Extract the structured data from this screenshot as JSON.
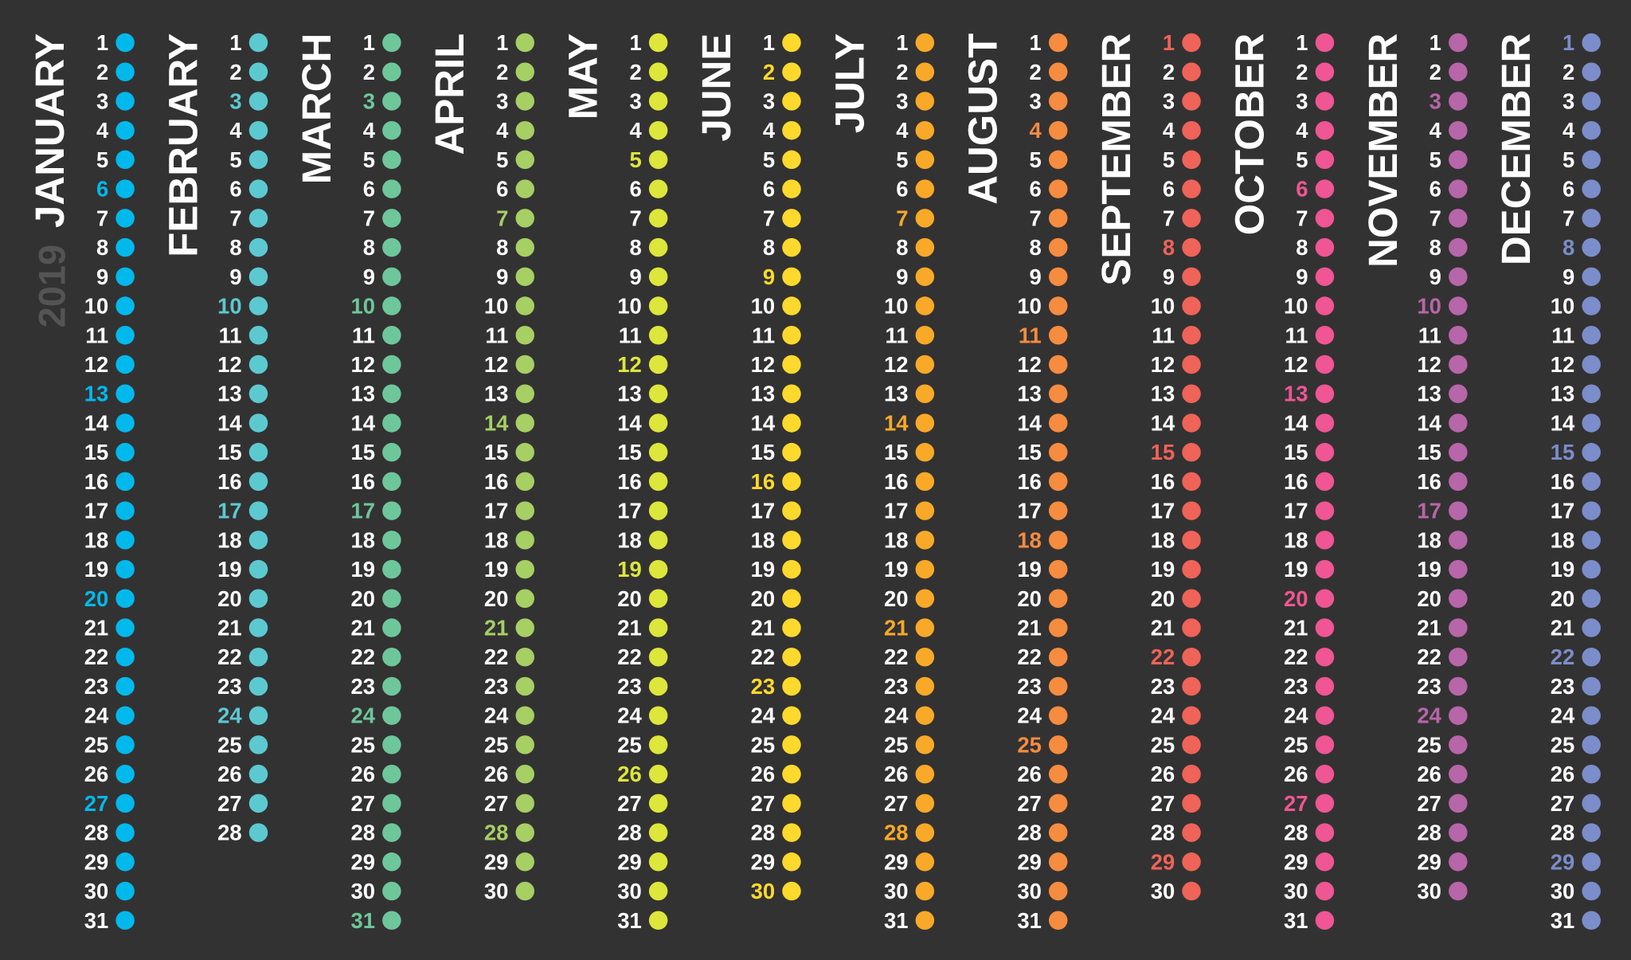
{
  "year": "2019",
  "months": [
    {
      "name": "JANUARY",
      "color": "#00b9ec",
      "days": [
        1,
        2,
        3,
        4,
        5,
        6,
        7,
        8,
        9,
        10,
        11,
        12,
        13,
        14,
        15,
        16,
        17,
        18,
        19,
        20,
        21,
        22,
        23,
        24,
        25,
        26,
        27,
        28,
        29,
        30,
        31
      ],
      "sundays": [
        6,
        13,
        20,
        27
      ]
    },
    {
      "name": "FEBRUARY",
      "color": "#5cc9d1",
      "days": [
        1,
        2,
        3,
        4,
        5,
        6,
        7,
        8,
        9,
        10,
        11,
        12,
        13,
        14,
        15,
        16,
        17,
        18,
        19,
        20,
        21,
        22,
        23,
        24,
        25,
        26,
        27,
        28
      ],
      "sundays": [
        3,
        10,
        17,
        24
      ]
    },
    {
      "name": "MARCH",
      "color": "#6dc79b",
      "days": [
        1,
        2,
        3,
        4,
        5,
        6,
        7,
        8,
        9,
        10,
        11,
        12,
        13,
        14,
        15,
        16,
        17,
        18,
        19,
        20,
        21,
        22,
        23,
        24,
        25,
        26,
        27,
        28,
        29,
        30,
        31
      ],
      "sundays": [
        3,
        10,
        17,
        24,
        31
      ]
    },
    {
      "name": "APRIL",
      "color": "#a6cf64",
      "days": [
        1,
        2,
        3,
        4,
        5,
        6,
        7,
        8,
        9,
        10,
        11,
        12,
        13,
        14,
        15,
        16,
        17,
        18,
        19,
        20,
        21,
        22,
        23,
        24,
        25,
        26,
        27,
        28,
        29,
        30
      ],
      "sundays": [
        7,
        14,
        21,
        28
      ]
    },
    {
      "name": "MAY",
      "color": "#dde63b",
      "days": [
        1,
        2,
        3,
        4,
        5,
        6,
        7,
        8,
        9,
        10,
        11,
        12,
        13,
        14,
        15,
        16,
        17,
        18,
        19,
        20,
        21,
        22,
        23,
        24,
        25,
        26,
        27,
        28,
        29,
        30,
        31
      ],
      "sundays": [
        5,
        12,
        19,
        26
      ]
    },
    {
      "name": "JUNE",
      "color": "#fdd92d",
      "days": [
        1,
        2,
        3,
        4,
        5,
        6,
        7,
        8,
        9,
        10,
        11,
        12,
        13,
        14,
        15,
        16,
        17,
        18,
        19,
        20,
        21,
        22,
        23,
        24,
        25,
        26,
        27,
        28,
        29,
        30
      ],
      "sundays": [
        2,
        9,
        16,
        23,
        30
      ]
    },
    {
      "name": "JULY",
      "color": "#f9a928",
      "days": [
        1,
        2,
        3,
        4,
        5,
        6,
        7,
        8,
        9,
        10,
        11,
        12,
        13,
        14,
        15,
        16,
        17,
        18,
        19,
        20,
        21,
        22,
        23,
        24,
        25,
        26,
        27,
        28,
        29,
        30,
        31
      ],
      "sundays": [
        7,
        14,
        21,
        28
      ]
    },
    {
      "name": "AUGUST",
      "color": "#f68c40",
      "days": [
        1,
        2,
        3,
        4,
        5,
        6,
        7,
        8,
        9,
        10,
        11,
        12,
        13,
        14,
        15,
        16,
        17,
        18,
        19,
        20,
        21,
        22,
        23,
        24,
        25,
        26,
        27,
        28,
        29,
        30,
        31
      ],
      "sundays": [
        4,
        11,
        18,
        25
      ]
    },
    {
      "name": "SEPTEMBER",
      "color": "#ef6358",
      "days": [
        1,
        2,
        3,
        4,
        5,
        6,
        7,
        8,
        9,
        10,
        11,
        12,
        13,
        14,
        15,
        16,
        17,
        18,
        19,
        20,
        21,
        22,
        23,
        24,
        25,
        26,
        27,
        28,
        29,
        30
      ],
      "sundays": [
        1,
        8,
        15,
        22,
        29
      ]
    },
    {
      "name": "OCTOBER",
      "color": "#ef5693",
      "days": [
        1,
        2,
        3,
        4,
        5,
        6,
        7,
        8,
        9,
        10,
        11,
        12,
        13,
        14,
        15,
        16,
        17,
        18,
        19,
        20,
        21,
        22,
        23,
        24,
        25,
        26,
        27,
        28,
        29,
        30,
        31
      ],
      "sundays": [
        6,
        13,
        20,
        27
      ]
    },
    {
      "name": "NOVEMBER",
      "color": "#b666a9",
      "days": [
        1,
        2,
        3,
        4,
        5,
        6,
        7,
        8,
        9,
        10,
        11,
        12,
        13,
        14,
        15,
        16,
        17,
        18,
        19,
        20,
        21,
        22,
        23,
        24,
        25,
        26,
        27,
        28,
        29,
        30
      ],
      "sundays": [
        3,
        10,
        17,
        24
      ]
    },
    {
      "name": "DECEMBER",
      "color": "#7b8dca",
      "days": [
        1,
        2,
        3,
        4,
        5,
        6,
        7,
        8,
        9,
        10,
        11,
        12,
        13,
        14,
        15,
        16,
        17,
        18,
        19,
        20,
        21,
        22,
        23,
        24,
        25,
        26,
        27,
        28,
        29,
        30,
        31
      ],
      "sundays": [
        1,
        8,
        15,
        22,
        29
      ]
    }
  ]
}
